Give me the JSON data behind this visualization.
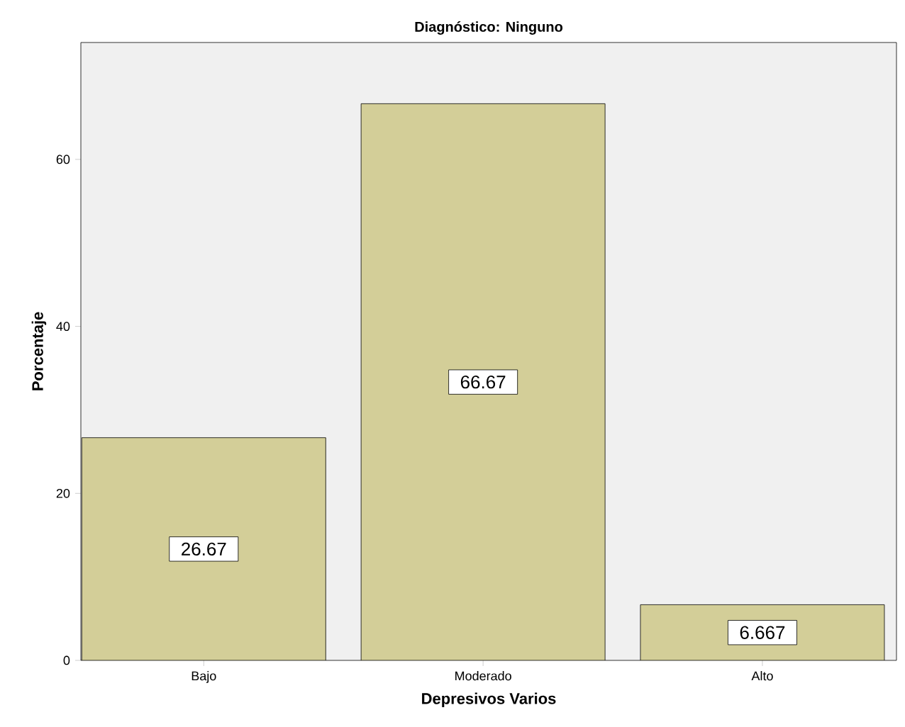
{
  "chart_data": {
    "type": "bar",
    "title": "Diagnóstico: Ninguno",
    "xlabel": "Depresivos Varios",
    "ylabel": "Porcentaje",
    "categories": [
      "Bajo",
      "Moderado",
      "Alto"
    ],
    "values": [
      26.67,
      66.67,
      6.667
    ],
    "value_labels": [
      "26.67",
      "66.67",
      "6.667"
    ],
    "color": "#d3ce98",
    "ylim": [
      0,
      74
    ],
    "yticks": [
      0,
      20,
      40,
      60
    ],
    "grid": false
  }
}
